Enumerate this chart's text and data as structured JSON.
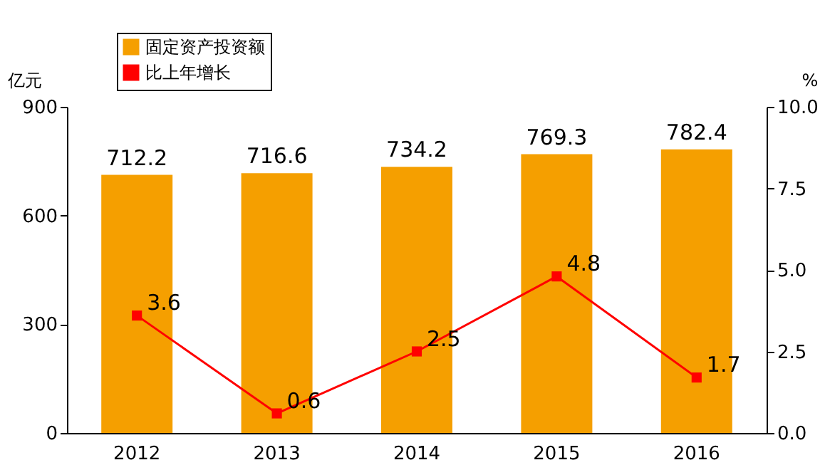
{
  "chart_data": {
    "type": "bar",
    "categories": [
      "2012",
      "2013",
      "2014",
      "2015",
      "2016"
    ],
    "series": [
      {
        "name": "固定资产投资额",
        "color": "#f59f00",
        "values": [
          712.2,
          716.6,
          734.2,
          769.3,
          782.4
        ]
      },
      {
        "name": "比上年增长",
        "type": "line",
        "axis": "y2",
        "color": "#ff0000",
        "values": [
          3.6,
          0.6,
          2.5,
          4.8,
          1.7
        ]
      }
    ],
    "ylabel": "亿元",
    "y2label": "%",
    "ylim": [
      0,
      900
    ],
    "yticks": [
      0,
      300,
      600,
      900
    ],
    "y2lim": [
      0,
      10
    ],
    "y2ticks": [
      {
        "value": 0,
        "label": "0.0"
      },
      {
        "value": 2.5,
        "label": "2.5"
      },
      {
        "value": 5,
        "label": "5.0"
      },
      {
        "value": 7.5,
        "label": "7.5"
      },
      {
        "value": 10,
        "label": "10.0"
      }
    ],
    "marker": "square",
    "data_labels": true,
    "legend": "top left",
    "grid": false
  }
}
